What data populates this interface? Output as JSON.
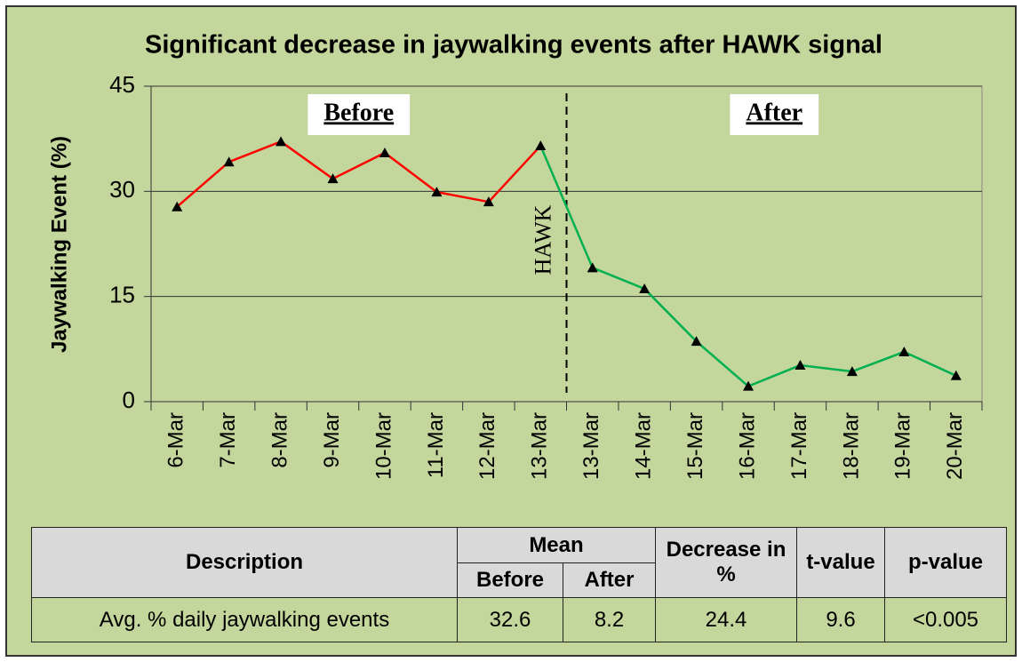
{
  "chart_data": {
    "type": "line",
    "title": "Significant decrease in jaywalking events after HAWK signal",
    "y_label": "Jaywalking Event (%)",
    "annotation": "HAWK",
    "categories": [
      "6-Mar",
      "7-Mar",
      "8-Mar",
      "9-Mar",
      "10-Mar",
      "11-Mar",
      "12-Mar",
      "13-Mar",
      "13-Mar",
      "14-Mar",
      "15-Mar",
      "16-Mar",
      "17-Mar",
      "18-Mar",
      "19-Mar",
      "20-Mar"
    ],
    "series": [
      {
        "name": "Before",
        "color": "#ff0000",
        "values": [
          27.8,
          34.2,
          37.1,
          31.8,
          35.5,
          29.9,
          28.5,
          36.5,
          null,
          null,
          null,
          null,
          null,
          null,
          null,
          null
        ]
      },
      {
        "name": "After",
        "color": "#00b050",
        "values": [
          null,
          null,
          null,
          null,
          null,
          null,
          null,
          null,
          19.1,
          16.1,
          8.6,
          2.2,
          5.2,
          4.3,
          7.1,
          3.7
        ]
      }
    ],
    "ylim": [
      0,
      45
    ],
    "yticks": [
      0,
      15,
      30,
      45
    ],
    "grid": true
  },
  "table": {
    "header": [
      "Description",
      "Mean",
      "Decrease in %",
      "t-value",
      "p-value"
    ],
    "subheader": [
      "Before",
      "After"
    ],
    "rows": [
      [
        "Avg. % daily jaywalking events",
        "32.6",
        "8.2",
        "24.4",
        "9.6",
        "<0.005"
      ]
    ]
  }
}
